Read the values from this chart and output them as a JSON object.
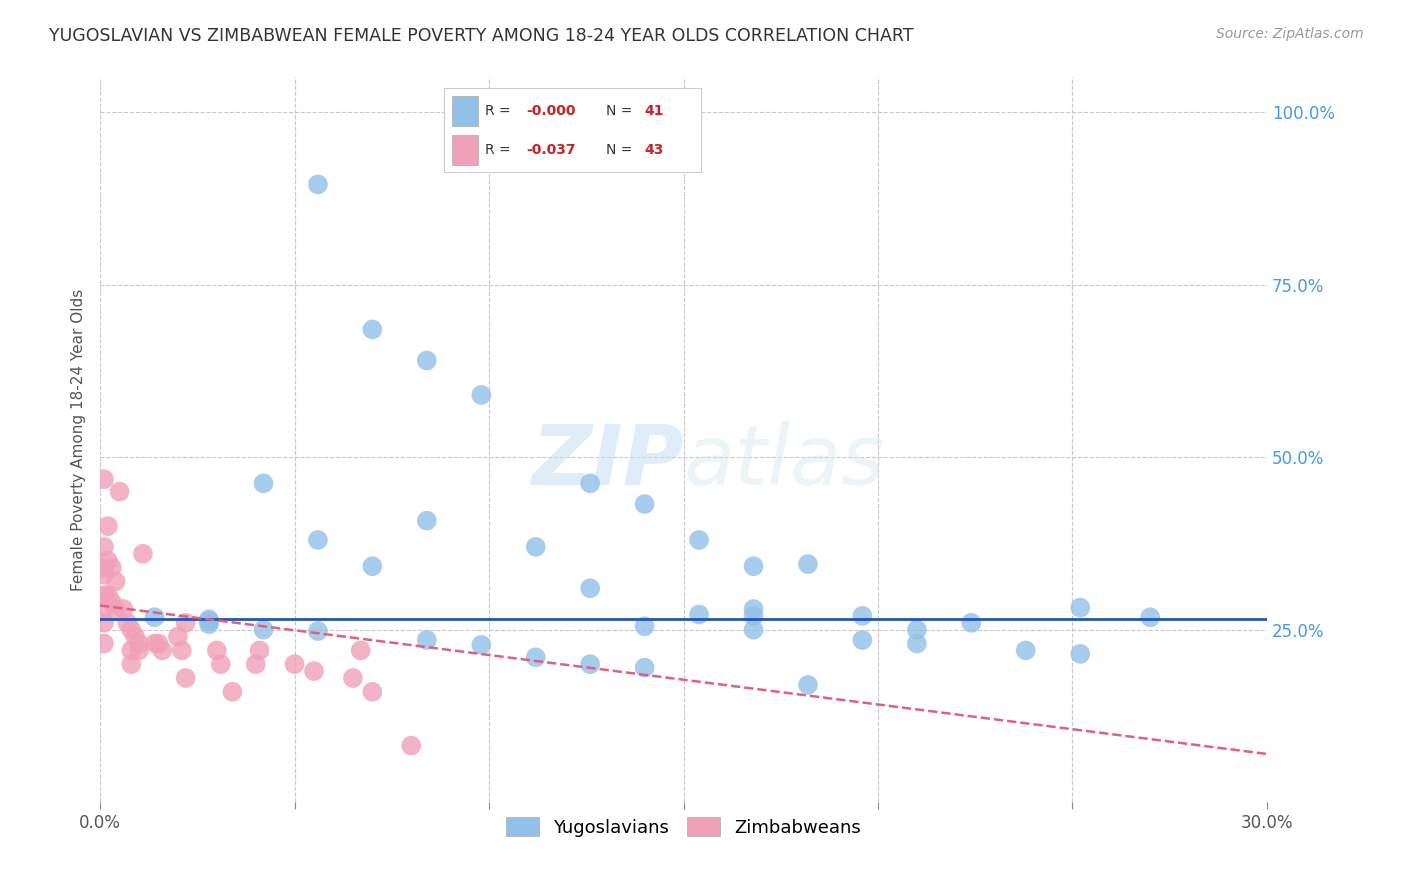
{
  "title": "YUGOSLAVIAN VS ZIMBABWEAN FEMALE POVERTY AMONG 18-24 YEAR OLDS CORRELATION CHART",
  "source": "Source: ZipAtlas.com",
  "ylabel": "Female Poverty Among 18-24 Year Olds",
  "xlim": [
    0.0,
    0.3
  ],
  "ylim": [
    0.0,
    1.05
  ],
  "xticks": [
    0.0,
    0.05,
    0.1,
    0.15,
    0.2,
    0.25,
    0.3
  ],
  "xticklabels": [
    "0.0%",
    "",
    "",
    "",
    "",
    "",
    "30.0%"
  ],
  "yticks_right": [
    0.25,
    0.5,
    0.75,
    1.0
  ],
  "ytick_right_labels": [
    "25.0%",
    "50.0%",
    "75.0%",
    "100.0%"
  ],
  "background_color": "#ffffff",
  "grid_color": "#c8c8c8",
  "watermark": "ZIPatlas",
  "blue_color": "#92c0e8",
  "pink_color": "#f0a0b8",
  "blue_line_color": "#2255bb",
  "pink_line_color": "#e06080",
  "blue_line_y0": 0.265,
  "blue_line_y1": 0.265,
  "pink_line_y0": 0.285,
  "pink_line_y1": 0.07,
  "yug_x": [
    0.056,
    0.07,
    0.084,
    0.098,
    0.126,
    0.14,
    0.154,
    0.168,
    0.042,
    0.056,
    0.07,
    0.084,
    0.112,
    0.126,
    0.154,
    0.168,
    0.14,
    0.168,
    0.182,
    0.196,
    0.21,
    0.252,
    0.168,
    0.196,
    0.224,
    0.21,
    0.238,
    0.252,
    0.014,
    0.028,
    0.028,
    0.028,
    0.042,
    0.056,
    0.084,
    0.098,
    0.112,
    0.126,
    0.14,
    0.182,
    0.27
  ],
  "yug_y": [
    0.895,
    0.685,
    0.64,
    0.59,
    0.462,
    0.432,
    0.38,
    0.342,
    0.462,
    0.38,
    0.342,
    0.408,
    0.37,
    0.31,
    0.272,
    0.25,
    0.255,
    0.27,
    0.345,
    0.27,
    0.25,
    0.282,
    0.28,
    0.235,
    0.26,
    0.23,
    0.22,
    0.215,
    0.268,
    0.265,
    0.262,
    0.258,
    0.25,
    0.248,
    0.235,
    0.228,
    0.21,
    0.2,
    0.195,
    0.17,
    0.268
  ],
  "zim_x": [
    0.001,
    0.001,
    0.001,
    0.001,
    0.001,
    0.001,
    0.001,
    0.001,
    0.002,
    0.002,
    0.002,
    0.003,
    0.003,
    0.004,
    0.004,
    0.005,
    0.006,
    0.007,
    0.008,
    0.008,
    0.008,
    0.009,
    0.01,
    0.01,
    0.011,
    0.014,
    0.015,
    0.016,
    0.02,
    0.021,
    0.022,
    0.022,
    0.03,
    0.031,
    0.034,
    0.04,
    0.041,
    0.05,
    0.055,
    0.065,
    0.067,
    0.07,
    0.08
  ],
  "zim_y": [
    0.468,
    0.37,
    0.34,
    0.33,
    0.3,
    0.28,
    0.26,
    0.23,
    0.4,
    0.35,
    0.3,
    0.34,
    0.29,
    0.32,
    0.28,
    0.45,
    0.28,
    0.26,
    0.25,
    0.22,
    0.2,
    0.24,
    0.23,
    0.22,
    0.36,
    0.23,
    0.23,
    0.22,
    0.24,
    0.22,
    0.26,
    0.18,
    0.22,
    0.2,
    0.16,
    0.2,
    0.22,
    0.2,
    0.19,
    0.18,
    0.22,
    0.16,
    0.082
  ]
}
